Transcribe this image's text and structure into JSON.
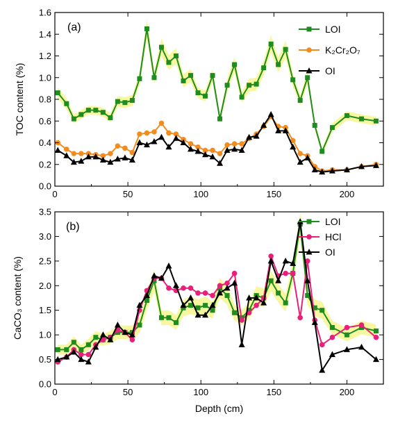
{
  "chart_data": [
    {
      "type": "line",
      "panel_label": "(a)",
      "ylabel": "TOC content  (%)",
      "xlabel": "",
      "xlim": [
        0,
        225
      ],
      "ylim": [
        0,
        1.6
      ],
      "xticks": [
        "0",
        "50",
        "100",
        "150",
        "200"
      ],
      "yticks": [
        "0.0",
        "0.2",
        "0.4",
        "0.6",
        "0.8",
        "1.0",
        "1.2",
        "1.4",
        "1.6"
      ],
      "legend_position": "top-right",
      "series": [
        {
          "name": "LOI",
          "color": "#1e8c1e",
          "band_color": "#f7f7a0",
          "marker": "square",
          "x": [
            2,
            8,
            13,
            18,
            23,
            28,
            33,
            38,
            43,
            48,
            53,
            58,
            63,
            68,
            73,
            78,
            83,
            88,
            93,
            98,
            103,
            108,
            113,
            118,
            123,
            128,
            133,
            138,
            143,
            148,
            153,
            158,
            163,
            168,
            173,
            178,
            183,
            190,
            200,
            210,
            220
          ],
          "y": [
            0.86,
            0.76,
            0.62,
            0.66,
            0.7,
            0.7,
            0.68,
            0.63,
            0.78,
            0.77,
            0.79,
            0.99,
            1.45,
            1.0,
            1.28,
            1.14,
            1.2,
            0.97,
            1.02,
            0.86,
            0.83,
            1.02,
            0.62,
            0.93,
            1.12,
            0.82,
            0.93,
            0.94,
            1.09,
            1.31,
            1.12,
            1.26,
            0.98,
            0.79,
            1.0,
            0.56,
            0.32,
            0.54,
            0.65,
            0.62,
            0.6
          ],
          "band_halfwidth": [
            0.05,
            0.05,
            0.04,
            0.04,
            0.04,
            0.04,
            0.04,
            0.04,
            0.05,
            0.05,
            0.05,
            0.06,
            0.09,
            0.06,
            0.08,
            0.07,
            0.07,
            0.06,
            0.06,
            0.05,
            0.05,
            0.06,
            0.04,
            0.06,
            0.07,
            0.05,
            0.06,
            0.06,
            0.07,
            0.08,
            0.07,
            0.08,
            0.06,
            0.05,
            0.06,
            0.04,
            0.03,
            0.04,
            0.04,
            0.04,
            0.04
          ]
        },
        {
          "name": "K₂Cr₂O₇",
          "color": "#f28c1e",
          "marker": "circle",
          "x": [
            2,
            8,
            13,
            18,
            23,
            28,
            33,
            38,
            43,
            48,
            53,
            58,
            63,
            68,
            73,
            78,
            83,
            88,
            93,
            98,
            103,
            108,
            113,
            118,
            123,
            128,
            133,
            138,
            143,
            148,
            153,
            158,
            163,
            168,
            173,
            178,
            183,
            190,
            200,
            210,
            220
          ],
          "y": [
            0.4,
            0.34,
            0.3,
            0.3,
            0.3,
            0.29,
            0.28,
            0.3,
            0.37,
            0.35,
            0.31,
            0.48,
            0.49,
            0.5,
            0.58,
            0.49,
            0.48,
            0.43,
            0.39,
            0.36,
            0.33,
            0.33,
            0.3,
            0.38,
            0.39,
            0.39,
            0.44,
            0.48,
            0.55,
            0.64,
            0.55,
            0.54,
            0.42,
            0.3,
            0.28,
            0.18,
            0.14,
            0.15,
            0.15,
            0.18,
            0.2
          ]
        },
        {
          "name": "OI",
          "color": "#000000",
          "marker": "triangle",
          "x": [
            2,
            8,
            13,
            18,
            23,
            28,
            33,
            38,
            43,
            48,
            53,
            58,
            63,
            68,
            73,
            78,
            83,
            88,
            93,
            98,
            103,
            108,
            113,
            118,
            123,
            128,
            133,
            138,
            143,
            148,
            153,
            158,
            163,
            168,
            173,
            178,
            183,
            190,
            200,
            210,
            220
          ],
          "y": [
            0.33,
            0.28,
            0.22,
            0.23,
            0.27,
            0.27,
            0.24,
            0.22,
            0.25,
            0.26,
            0.24,
            0.4,
            0.38,
            0.41,
            0.45,
            0.36,
            0.44,
            0.4,
            0.34,
            0.32,
            0.29,
            0.27,
            0.21,
            0.33,
            0.34,
            0.33,
            0.45,
            0.46,
            0.56,
            0.66,
            0.51,
            0.51,
            0.36,
            0.22,
            0.26,
            0.15,
            0.13,
            0.14,
            0.15,
            0.18,
            0.19
          ]
        }
      ]
    },
    {
      "type": "line",
      "panel_label": "(b)",
      "ylabel": "CaCO₃ content  (%)",
      "xlabel": "Depth  (cm)",
      "xlim": [
        0,
        225
      ],
      "ylim": [
        0,
        3.5
      ],
      "xticks": [
        "0",
        "50",
        "100",
        "150",
        "200"
      ],
      "yticks": [
        "0.0",
        "0.5",
        "1.0",
        "1.5",
        "2.0",
        "2.5",
        "3.0",
        "3.5"
      ],
      "legend_position": "top-right",
      "series": [
        {
          "name": "LOI",
          "color": "#1e8c1e",
          "band_color": "#f7f7a0",
          "marker": "square",
          "x": [
            2,
            8,
            13,
            18,
            23,
            28,
            33,
            38,
            43,
            48,
            53,
            58,
            63,
            68,
            73,
            78,
            83,
            88,
            93,
            98,
            103,
            108,
            113,
            118,
            123,
            128,
            133,
            138,
            143,
            148,
            153,
            158,
            163,
            168,
            173,
            178,
            183,
            190,
            200,
            210,
            220
          ],
          "y": [
            0.7,
            0.7,
            0.85,
            0.7,
            0.8,
            0.95,
            0.9,
            0.95,
            1.05,
            1.05,
            1.05,
            1.2,
            1.7,
            2.1,
            1.35,
            1.35,
            1.25,
            1.55,
            1.6,
            1.55,
            1.6,
            1.5,
            1.95,
            1.8,
            1.45,
            1.35,
            1.5,
            1.8,
            1.75,
            2.1,
            1.85,
            1.65,
            2.25,
            3.25,
            1.8,
            1.55,
            1.5,
            1.15,
            1.0,
            1.15,
            1.08
          ],
          "band_halfwidth": [
            0.1,
            0.1,
            0.12,
            0.1,
            0.12,
            0.13,
            0.12,
            0.13,
            0.14,
            0.14,
            0.14,
            0.16,
            0.2,
            0.22,
            0.15,
            0.15,
            0.15,
            0.17,
            0.18,
            0.17,
            0.18,
            0.17,
            0.2,
            0.19,
            0.16,
            0.15,
            0.17,
            0.19,
            0.19,
            0.21,
            0.19,
            0.18,
            0.22,
            0.25,
            0.19,
            0.17,
            0.17,
            0.14,
            0.13,
            0.14,
            0.13
          ]
        },
        {
          "name": "HCl",
          "color": "#e8207a",
          "marker": "circle",
          "x": [
            2,
            8,
            13,
            18,
            23,
            28,
            33,
            38,
            43,
            48,
            53,
            58,
            63,
            68,
            73,
            78,
            83,
            88,
            93,
            98,
            103,
            108,
            113,
            118,
            123,
            128,
            133,
            138,
            143,
            148,
            153,
            158,
            163,
            168,
            173,
            178,
            183,
            190,
            200,
            210,
            220
          ],
          "y": [
            0.45,
            0.55,
            0.7,
            0.6,
            0.6,
            0.8,
            0.9,
            0.95,
            1.1,
            1.05,
            0.9,
            1.5,
            1.9,
            2.15,
            2.15,
            1.95,
            1.9,
            1.95,
            1.95,
            1.85,
            1.85,
            1.8,
            2.0,
            2.05,
            2.25,
            1.3,
            1.45,
            1.6,
            1.75,
            2.6,
            2.2,
            2.25,
            2.25,
            1.35,
            2.5,
            1.3,
            0.8,
            0.95,
            1.15,
            1.2,
            0.95
          ]
        },
        {
          "name": "OI",
          "color": "#000000",
          "marker": "triangle",
          "x": [
            2,
            8,
            13,
            18,
            23,
            28,
            33,
            38,
            43,
            48,
            53,
            58,
            63,
            68,
            73,
            78,
            83,
            88,
            93,
            98,
            103,
            108,
            113,
            118,
            123,
            128,
            133,
            138,
            143,
            148,
            153,
            158,
            163,
            168,
            173,
            178,
            183,
            190,
            200,
            210,
            220
          ],
          "y": [
            0.5,
            0.55,
            0.65,
            0.5,
            0.45,
            0.75,
            1.0,
            0.9,
            1.2,
            1.05,
            1.0,
            1.6,
            1.8,
            2.2,
            2.15,
            2.4,
            2.0,
            1.6,
            1.75,
            1.4,
            1.4,
            1.6,
            1.85,
            1.95,
            2.05,
            0.8,
            1.75,
            1.75,
            1.65,
            2.5,
            2.1,
            2.5,
            2.45,
            3.3,
            2.1,
            1.25,
            0.28,
            0.6,
            0.7,
            0.75,
            0.5
          ]
        }
      ]
    }
  ]
}
